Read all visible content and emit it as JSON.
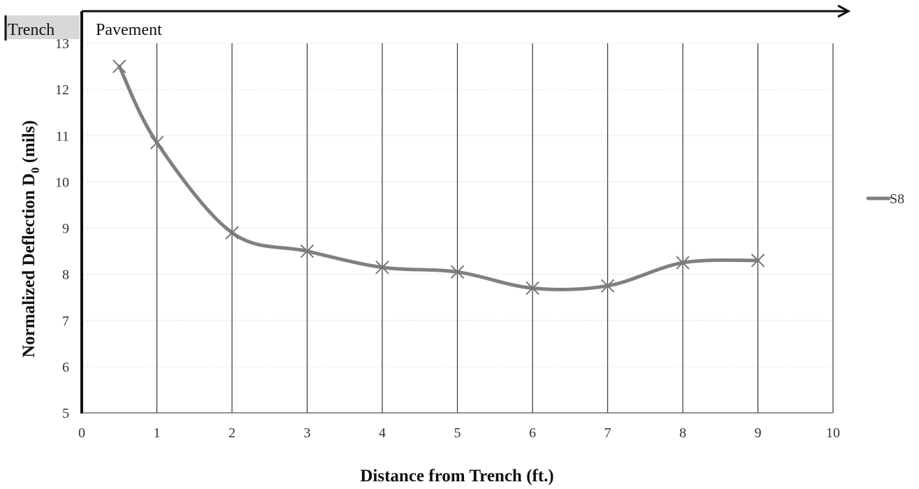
{
  "chart_data": {
    "type": "line",
    "xlabel": "Distance from Trench (ft.)",
    "ylabel_main": "Normalized Deflection D",
    "ylabel_sub": "0",
    "ylabel_tail": " (mils)",
    "xlim": [
      0,
      10
    ],
    "ylim": [
      5,
      13
    ],
    "xticks": [
      "0",
      "1",
      "2",
      "3",
      "4",
      "5",
      "6",
      "7",
      "8",
      "9",
      "10"
    ],
    "yticks": [
      "5",
      "6",
      "7",
      "8",
      "9",
      "10",
      "11",
      "12",
      "13"
    ],
    "grid": "vertical major lines, dotted horizontal lines",
    "legend_placement": "right",
    "annotations": {
      "trench": "Trench",
      "pavement": "Pavement"
    },
    "series": [
      {
        "name": "S8",
        "color": "#808080",
        "marker": "x",
        "smooth": true,
        "x": [
          0.5,
          1,
          2,
          3,
          4,
          5,
          6,
          7,
          8,
          9
        ],
        "y": [
          12.5,
          10.85,
          8.9,
          8.5,
          8.15,
          8.05,
          7.7,
          7.75,
          8.25,
          8.3
        ]
      }
    ]
  }
}
